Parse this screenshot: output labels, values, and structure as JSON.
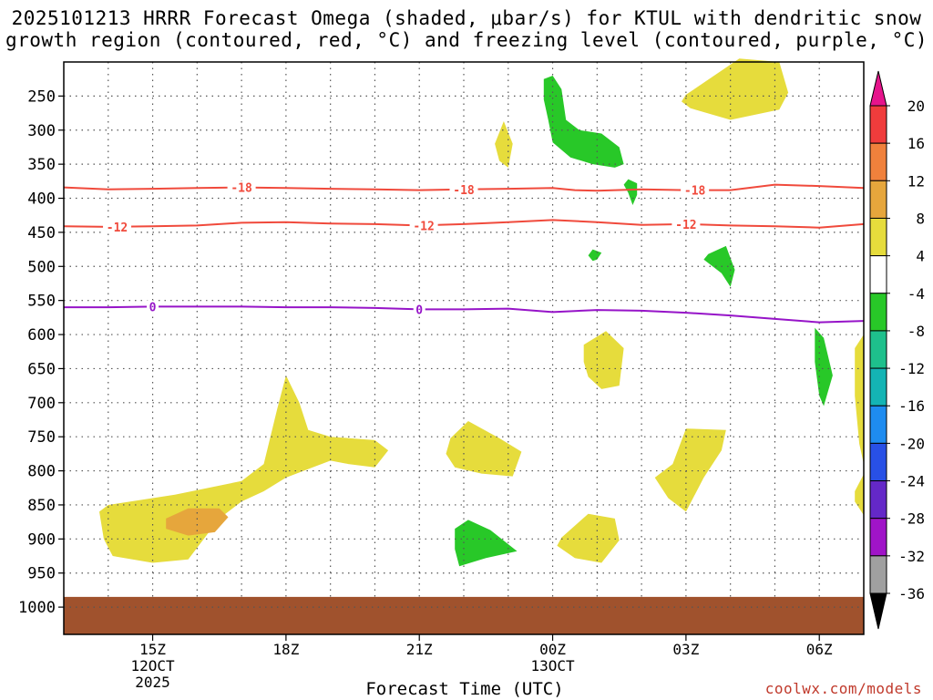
{
  "chart_data": {
    "type": "heatmap",
    "title_line1": "2025101213 HRRR Forecast Omega (shaded, μbar/s) for KTUL with dendritic snow",
    "title_line2": "growth region (contoured, red, °C) and freezing level (contoured, purple, °C)",
    "xlabel": "Forecast Time (UTC)",
    "ylabel": "",
    "x_ticks": [
      {
        "hours": 2,
        "label": "15Z",
        "sub1": "12OCT",
        "sub2": "2025"
      },
      {
        "hours": 5,
        "label": "18Z",
        "sub1": "",
        "sub2": ""
      },
      {
        "hours": 8,
        "label": "21Z",
        "sub1": "",
        "sub2": ""
      },
      {
        "hours": 11,
        "label": "00Z",
        "sub1": "13OCT",
        "sub2": ""
      },
      {
        "hours": 14,
        "label": "03Z",
        "sub1": "",
        "sub2": ""
      },
      {
        "hours": 17,
        "label": "06Z",
        "sub1": "",
        "sub2": ""
      }
    ],
    "x_range_hours": [
      0,
      18
    ],
    "y_ticks": [
      250,
      300,
      350,
      400,
      450,
      500,
      550,
      600,
      650,
      700,
      750,
      800,
      850,
      900,
      950,
      1000
    ],
    "y_range_hpa": [
      200,
      1040
    ],
    "ground_hpa": 985,
    "colorbar": {
      "labels": [
        "20",
        "16",
        "12",
        "8",
        "4",
        "-4",
        "-8",
        "-12",
        "-16",
        "-20",
        "-24",
        "-28",
        "-32",
        "-36"
      ],
      "colors": [
        "#f03c3c",
        "#f0813c",
        "#e6a63c",
        "#e6dc3c",
        "#ffffff",
        "#28c828",
        "#1ec08c",
        "#14b4b4",
        "#1e8cf0",
        "#2850e6",
        "#6428c8",
        "#a014c8",
        "#a0a0a0"
      ],
      "top_arrow_color": "#e6148c",
      "bottom_arrow_color": "#000000"
    },
    "contours": [
      {
        "name": "dgz-18",
        "label": "-18",
        "color": "#f04a3c",
        "points": [
          [
            0,
            384
          ],
          [
            1,
            387
          ],
          [
            2,
            386
          ],
          [
            3,
            385
          ],
          [
            4,
            384
          ],
          [
            5,
            385
          ],
          [
            6,
            386
          ],
          [
            7,
            387
          ],
          [
            8,
            388
          ],
          [
            9,
            387
          ],
          [
            10,
            386
          ],
          [
            11,
            385
          ],
          [
            11.5,
            388
          ],
          [
            12,
            389
          ],
          [
            13,
            387
          ],
          [
            14,
            388
          ],
          [
            15,
            388
          ],
          [
            16,
            380
          ],
          [
            17,
            382
          ],
          [
            18,
            385
          ]
        ],
        "label_hours": [
          4,
          9,
          14.2
        ]
      },
      {
        "name": "dgz-12",
        "label": "-12",
        "color": "#f04a3c",
        "points": [
          [
            0,
            441
          ],
          [
            1,
            442
          ],
          [
            2,
            441
          ],
          [
            3,
            440
          ],
          [
            4,
            436
          ],
          [
            5,
            435
          ],
          [
            6,
            437
          ],
          [
            7,
            438
          ],
          [
            8,
            440
          ],
          [
            9,
            438
          ],
          [
            10,
            435
          ],
          [
            11,
            432
          ],
          [
            12,
            435
          ],
          [
            13,
            439
          ],
          [
            14,
            438
          ],
          [
            15,
            440
          ],
          [
            16,
            441
          ],
          [
            17,
            443
          ],
          [
            18,
            438
          ]
        ],
        "label_hours": [
          1.2,
          8.1,
          14
        ]
      },
      {
        "name": "freezing-0",
        "label": "0",
        "color": "#9614c8",
        "points": [
          [
            0,
            560
          ],
          [
            1,
            560
          ],
          [
            2,
            559
          ],
          [
            3,
            559
          ],
          [
            4,
            559
          ],
          [
            5,
            560
          ],
          [
            6,
            560
          ],
          [
            7,
            561
          ],
          [
            8,
            563
          ],
          [
            9,
            563
          ],
          [
            10,
            562
          ],
          [
            11,
            567
          ],
          [
            12,
            564
          ],
          [
            13,
            565
          ],
          [
            14,
            568
          ],
          [
            15,
            572
          ],
          [
            16,
            577
          ],
          [
            17,
            582
          ],
          [
            18,
            580
          ]
        ],
        "label_hours": [
          2,
          8
        ]
      }
    ],
    "shaded_regions": [
      {
        "name": "omega-pos-upper-right",
        "value_bin": "4-8",
        "color": "#e6dc3c",
        "points": [
          [
            14.0,
            248
          ],
          [
            15.2,
            195
          ],
          [
            16.1,
            200
          ],
          [
            16.3,
            245
          ],
          [
            16.1,
            270
          ],
          [
            15,
            285
          ],
          [
            14.1,
            268
          ],
          [
            13.9,
            258
          ]
        ]
      },
      {
        "name": "omega-pos-upper-mid",
        "value_bin": "4-8",
        "color": "#e6dc3c",
        "points": [
          [
            9.7,
            320
          ],
          [
            9.9,
            287
          ],
          [
            10.1,
            320
          ],
          [
            10.0,
            355
          ],
          [
            9.8,
            345
          ]
        ]
      },
      {
        "name": "omega-neg-hook",
        "value_bin": "-4--8",
        "color": "#28c828",
        "points": [
          [
            10.8,
            225
          ],
          [
            11.0,
            220
          ],
          [
            11.2,
            240
          ],
          [
            11.3,
            285
          ],
          [
            11.6,
            300
          ],
          [
            12.1,
            305
          ],
          [
            12.5,
            325
          ],
          [
            12.6,
            350
          ],
          [
            12.4,
            355
          ],
          [
            11.9,
            350
          ],
          [
            11.4,
            340
          ],
          [
            11.0,
            318
          ],
          [
            10.9,
            285
          ],
          [
            10.8,
            255
          ]
        ]
      },
      {
        "name": "omega-neg-streak-395",
        "value_bin": "-4--8",
        "color": "#28c828",
        "points": [
          [
            12.7,
            372
          ],
          [
            12.9,
            378
          ],
          [
            12.9,
            395
          ],
          [
            12.8,
            410
          ],
          [
            12.7,
            392
          ],
          [
            12.6,
            380
          ]
        ]
      },
      {
        "name": "omega-neg-dot-480",
        "value_bin": "-4--8",
        "color": "#28c828",
        "points": [
          [
            11.9,
            475
          ],
          [
            12.1,
            480
          ],
          [
            12.0,
            490
          ],
          [
            11.9,
            492
          ],
          [
            11.8,
            484
          ]
        ]
      },
      {
        "name": "omega-neg-500",
        "value_bin": "-4--8",
        "color": "#28c828",
        "points": [
          [
            14.5,
            482
          ],
          [
            14.9,
            470
          ],
          [
            15.1,
            505
          ],
          [
            15.0,
            530
          ],
          [
            14.8,
            510
          ],
          [
            14.4,
            490
          ]
        ]
      },
      {
        "name": "omega-neg-640",
        "value_bin": "-4--8",
        "color": "#28c828",
        "points": [
          [
            16.9,
            590
          ],
          [
            17.1,
            605
          ],
          [
            17.3,
            660
          ],
          [
            17.1,
            705
          ],
          [
            17.0,
            690
          ],
          [
            16.9,
            640
          ]
        ]
      },
      {
        "name": "omega-pos-620",
        "value_bin": "4-8",
        "color": "#e6dc3c",
        "points": [
          [
            11.7,
            615
          ],
          [
            12.2,
            595
          ],
          [
            12.6,
            620
          ],
          [
            12.5,
            675
          ],
          [
            12.1,
            680
          ],
          [
            11.8,
            662
          ],
          [
            11.7,
            640
          ]
        ]
      },
      {
        "name": "omega-pos-right-edge",
        "value_bin": "4-8",
        "color": "#e6dc3c",
        "points": [
          [
            17.8,
            620
          ],
          [
            18.0,
            600
          ],
          [
            18.0,
            790
          ],
          [
            17.9,
            760
          ],
          [
            17.8,
            690
          ]
        ]
      },
      {
        "name": "omega-pos-right-edge-low",
        "value_bin": "4-8",
        "color": "#e6dc3c",
        "points": [
          [
            17.8,
            830
          ],
          [
            18.0,
            805
          ],
          [
            18.0,
            865
          ],
          [
            17.8,
            845
          ]
        ]
      },
      {
        "name": "omega-pos-low-left",
        "value_bin": "4-8",
        "color": "#e6dc3c",
        "points": [
          [
            0.8,
            860
          ],
          [
            1.0,
            850
          ],
          [
            1.5,
            845
          ],
          [
            2.5,
            835
          ],
          [
            4.0,
            815
          ],
          [
            4.5,
            790
          ],
          [
            4.8,
            710
          ],
          [
            5.0,
            660
          ],
          [
            5.3,
            700
          ],
          [
            5.5,
            740
          ],
          [
            6.0,
            750
          ],
          [
            7.0,
            755
          ],
          [
            7.3,
            770
          ],
          [
            7.0,
            795
          ],
          [
            6.4,
            790
          ],
          [
            6.0,
            785
          ],
          [
            5.6,
            795
          ],
          [
            5.0,
            810
          ],
          [
            4.5,
            830
          ],
          [
            4.0,
            845
          ],
          [
            3.5,
            870
          ],
          [
            2.8,
            930
          ],
          [
            2.0,
            935
          ],
          [
            1.1,
            925
          ],
          [
            0.9,
            900
          ]
        ]
      },
      {
        "name": "omega-pos-low-mid",
        "value_bin": "4-8",
        "color": "#e6dc3c",
        "points": [
          [
            8.7,
            752
          ],
          [
            9.1,
            727
          ],
          [
            9.8,
            752
          ],
          [
            10.3,
            772
          ],
          [
            10.1,
            808
          ],
          [
            9.4,
            804
          ],
          [
            8.8,
            795
          ],
          [
            8.6,
            775
          ]
        ]
      },
      {
        "name": "omega-pos-low-right",
        "value_bin": "4-8",
        "color": "#e6dc3c",
        "points": [
          [
            13.7,
            790
          ],
          [
            14.0,
            738
          ],
          [
            14.9,
            740
          ],
          [
            14.8,
            770
          ],
          [
            14.4,
            810
          ],
          [
            14.0,
            860
          ],
          [
            13.6,
            840
          ],
          [
            13.3,
            810
          ]
        ]
      },
      {
        "name": "omega-pos-900",
        "value_bin": "4-8",
        "color": "#e6dc3c",
        "points": [
          [
            11.2,
            898
          ],
          [
            11.8,
            863
          ],
          [
            12.4,
            870
          ],
          [
            12.5,
            902
          ],
          [
            12.1,
            935
          ],
          [
            11.5,
            928
          ],
          [
            11.1,
            910
          ]
        ]
      },
      {
        "name": "omega-neg-920",
        "value_bin": "-4--8",
        "color": "#28c828",
        "points": [
          [
            8.8,
            885
          ],
          [
            9.1,
            872
          ],
          [
            9.6,
            887
          ],
          [
            10.2,
            918
          ],
          [
            9.5,
            928
          ],
          [
            8.9,
            940
          ],
          [
            8.8,
            915
          ]
        ]
      },
      {
        "name": "omega-orange-870",
        "value_bin": "8-12",
        "color": "#e6a63c",
        "points": [
          [
            2.3,
            870
          ],
          [
            2.8,
            855
          ],
          [
            3.5,
            855
          ],
          [
            3.7,
            868
          ],
          [
            3.4,
            890
          ],
          [
            2.8,
            895
          ],
          [
            2.3,
            885
          ]
        ]
      }
    ]
  },
  "credit": "coolwx.com/models"
}
